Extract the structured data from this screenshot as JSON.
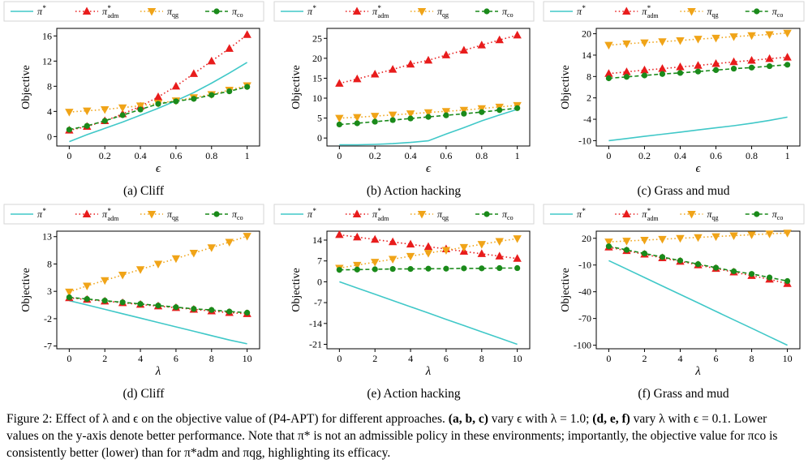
{
  "colors": {
    "pi_star": "#40c8c8",
    "pi_adm": "#e81c1c",
    "pi_qg": "#f0a418",
    "pi_co": "#1a8a1a"
  },
  "legend": {
    "pi_star": "π*",
    "pi_adm": "π*adm",
    "pi_qg": "πqg",
    "pi_co": "πco"
  },
  "caption": {
    "intro": "Figure 2: Effect of λ and ϵ on the objective value of (P4-APT) for different approaches. ",
    "abc": "(a, b, c)",
    "vary_eps": " vary ϵ with λ = 1.0; ",
    "def": "(d, e, f)",
    "rest": " vary λ with ϵ = 0.1. Lower values on the y-axis denote better performance. Note that π* is not an admissible policy in these environments; importantly, the objective value for πco is consistently better (lower) than for π*adm and πqg, highlighting its efficacy."
  },
  "chart_data": [
    {
      "type": "line",
      "subcaption": "(a) Cliff",
      "xlabel": "ϵ",
      "ylabel": "Objective",
      "x": [
        0,
        0.1,
        0.2,
        0.3,
        0.4,
        0.5,
        0.6,
        0.7,
        0.8,
        0.9,
        1.0
      ],
      "xticks": [
        0,
        0.2,
        0.4,
        0.6,
        0.8,
        1
      ],
      "xtick_labels": [
        "0",
        "0.2",
        "0.4",
        "0.6",
        "0.8",
        "1"
      ],
      "xlim": [
        -0.07,
        1.07
      ],
      "yticks": [
        0,
        4,
        8,
        12,
        16
      ],
      "ylim": [
        -1.5,
        17.2
      ],
      "series": [
        {
          "key": "pi_star",
          "values": [
            -0.8,
            0.3,
            1.3,
            2.3,
            3.4,
            4.5,
            5.7,
            7.0,
            8.5,
            10.1,
            11.8
          ]
        },
        {
          "key": "pi_adm",
          "values": [
            1.0,
            1.6,
            2.5,
            3.6,
            4.8,
            6.3,
            8.0,
            10.0,
            12.0,
            14.0,
            16.2
          ]
        },
        {
          "key": "pi_qg",
          "values": [
            3.9,
            4.1,
            4.3,
            4.6,
            4.9,
            5.3,
            5.7,
            6.2,
            6.7,
            7.4,
            8.1
          ]
        },
        {
          "key": "pi_co",
          "values": [
            1.1,
            1.7,
            2.5,
            3.4,
            4.3,
            5.2,
            5.6,
            6.0,
            6.6,
            7.2,
            7.9
          ]
        }
      ]
    },
    {
      "type": "line",
      "subcaption": "(b) Action hacking",
      "xlabel": "ϵ",
      "ylabel": "Objective",
      "x": [
        0,
        0.1,
        0.2,
        0.3,
        0.4,
        0.5,
        0.6,
        0.7,
        0.8,
        0.9,
        1.0
      ],
      "xticks": [
        0,
        0.2,
        0.4,
        0.6,
        0.8,
        1
      ],
      "xtick_labels": [
        "0",
        "0.2",
        "0.4",
        "0.6",
        "0.8",
        "1"
      ],
      "xlim": [
        -0.07,
        1.07
      ],
      "yticks": [
        0,
        5,
        10,
        15,
        20,
        25
      ],
      "ylim": [
        -2,
        27.5
      ],
      "series": [
        {
          "key": "pi_star",
          "values": [
            -1.7,
            -1.7,
            -1.6,
            -1.4,
            -1.1,
            -0.7,
            1.0,
            2.6,
            4.3,
            5.8,
            7.2
          ]
        },
        {
          "key": "pi_adm",
          "values": [
            13.7,
            14.8,
            16.0,
            17.2,
            18.5,
            19.5,
            20.8,
            22.0,
            23.3,
            24.6,
            25.8
          ]
        },
        {
          "key": "pi_qg",
          "values": [
            5.0,
            5.2,
            5.5,
            5.8,
            6.1,
            6.4,
            6.7,
            7.0,
            7.4,
            7.8,
            8.2
          ]
        },
        {
          "key": "pi_co",
          "values": [
            3.4,
            3.7,
            4.1,
            4.5,
            4.9,
            5.3,
            5.7,
            6.1,
            6.5,
            7.0,
            7.5
          ]
        }
      ]
    },
    {
      "type": "line",
      "subcaption": "(c) Grass and mud",
      "xlabel": "ϵ",
      "ylabel": "Objective",
      "x": [
        0,
        0.1,
        0.2,
        0.3,
        0.4,
        0.5,
        0.6,
        0.7,
        0.8,
        0.9,
        1.0
      ],
      "xticks": [
        0,
        0.2,
        0.4,
        0.6,
        0.8,
        1
      ],
      "xtick_labels": [
        "0",
        "0.2",
        "0.4",
        "0.6",
        "0.8",
        "1"
      ],
      "xlim": [
        -0.07,
        1.07
      ],
      "yticks": [
        -10,
        -4,
        2,
        8,
        14,
        20
      ],
      "ylim": [
        -11.5,
        21.5
      ],
      "series": [
        {
          "key": "pi_star",
          "values": [
            -10.0,
            -9.4,
            -8.8,
            -8.2,
            -7.6,
            -7.0,
            -6.4,
            -5.8,
            -5.1,
            -4.3,
            -3.4
          ]
        },
        {
          "key": "pi_adm",
          "values": [
            8.8,
            9.3,
            9.8,
            10.2,
            10.7,
            11.1,
            11.6,
            12.1,
            12.5,
            13.0,
            13.4
          ]
        },
        {
          "key": "pi_qg",
          "values": [
            16.8,
            17.2,
            17.5,
            17.8,
            18.1,
            18.5,
            18.8,
            19.2,
            19.5,
            19.8,
            20.2
          ]
        },
        {
          "key": "pi_co",
          "values": [
            7.5,
            7.9,
            8.3,
            8.7,
            9.0,
            9.4,
            9.8,
            10.2,
            10.5,
            10.9,
            11.3
          ]
        }
      ]
    },
    {
      "type": "line",
      "subcaption": "(d) Cliff",
      "xlabel": "λ",
      "ylabel": "Objective",
      "x": [
        0,
        1,
        2,
        3,
        4,
        5,
        6,
        7,
        8,
        9,
        10
      ],
      "xticks": [
        0,
        2,
        4,
        6,
        8,
        10
      ],
      "xtick_labels": [
        "0",
        "2",
        "4",
        "6",
        "8",
        "10"
      ],
      "xlim": [
        -0.7,
        10.7
      ],
      "yticks": [
        -7,
        -2,
        3,
        8,
        13
      ],
      "ylim": [
        -7.5,
        14
      ],
      "series": [
        {
          "key": "pi_star",
          "values": [
            1.3,
            0.5,
            -0.3,
            -1.1,
            -1.9,
            -2.7,
            -3.5,
            -4.3,
            -5.1,
            -5.9,
            -6.6
          ]
        },
        {
          "key": "pi_adm",
          "values": [
            1.8,
            1.5,
            1.2,
            0.9,
            0.6,
            0.3,
            0.0,
            -0.3,
            -0.6,
            -0.9,
            -1.1
          ]
        },
        {
          "key": "pi_qg",
          "values": [
            2.9,
            4.0,
            5.0,
            6.0,
            7.0,
            8.0,
            9.0,
            10.0,
            11.0,
            12.0,
            13.1
          ]
        },
        {
          "key": "pi_co",
          "values": [
            1.9,
            1.6,
            1.3,
            1.0,
            0.7,
            0.4,
            0.1,
            -0.2,
            -0.4,
            -0.7,
            -0.9
          ]
        }
      ]
    },
    {
      "type": "line",
      "subcaption": "(e) Action hacking",
      "xlabel": "λ",
      "ylabel": "Objective",
      "x": [
        0,
        1,
        2,
        3,
        4,
        5,
        6,
        7,
        8,
        9,
        10
      ],
      "xticks": [
        0,
        2,
        4,
        6,
        8,
        10
      ],
      "xtick_labels": [
        "0",
        "2",
        "4",
        "6",
        "8",
        "10"
      ],
      "xlim": [
        -0.7,
        10.7
      ],
      "yticks": [
        -21,
        -14,
        -7,
        0,
        7,
        14
      ],
      "ylim": [
        -22.5,
        17
      ],
      "series": [
        {
          "key": "pi_star",
          "values": [
            0.0,
            -2.1,
            -4.2,
            -6.3,
            -8.4,
            -10.5,
            -12.6,
            -14.7,
            -16.8,
            -18.9,
            -21.0
          ]
        },
        {
          "key": "pi_adm",
          "values": [
            15.8,
            15.0,
            14.2,
            13.4,
            12.6,
            11.8,
            11.0,
            10.2,
            9.4,
            8.6,
            7.8
          ]
        },
        {
          "key": "pi_qg",
          "values": [
            4.6,
            5.6,
            6.6,
            7.6,
            8.6,
            9.6,
            10.6,
            11.6,
            12.6,
            13.6,
            14.5
          ]
        },
        {
          "key": "pi_co",
          "values": [
            4.0,
            4.1,
            4.2,
            4.3,
            4.3,
            4.4,
            4.4,
            4.5,
            4.5,
            4.6,
            4.6
          ]
        }
      ]
    },
    {
      "type": "line",
      "subcaption": "(f) Grass and mud",
      "xlabel": "λ",
      "ylabel": "Objective",
      "x": [
        0,
        1,
        2,
        3,
        4,
        5,
        6,
        7,
        8,
        9,
        10
      ],
      "xticks": [
        0,
        2,
        4,
        6,
        8,
        10
      ],
      "xtick_labels": [
        "0",
        "2",
        "4",
        "6",
        "8",
        "10"
      ],
      "xlim": [
        -0.7,
        10.7
      ],
      "yticks": [
        -100,
        -70,
        -40,
        -10,
        20
      ],
      "ylim": [
        -104,
        28
      ],
      "series": [
        {
          "key": "pi_star",
          "values": [
            -5,
            -14.5,
            -24,
            -33.5,
            -43,
            -52.5,
            -62,
            -71.5,
            -81,
            -90.5,
            -100
          ]
        },
        {
          "key": "pi_adm",
          "values": [
            10,
            6,
            2,
            -2,
            -6,
            -10,
            -14,
            -18,
            -22,
            -26,
            -31
          ]
        },
        {
          "key": "pi_qg",
          "values": [
            16,
            17,
            18,
            19,
            20,
            21,
            22,
            23,
            24,
            25,
            26
          ]
        },
        {
          "key": "pi_co",
          "values": [
            11,
            7,
            3,
            -1,
            -5,
            -9,
            -13,
            -17,
            -20,
            -24,
            -28
          ]
        }
      ]
    }
  ]
}
